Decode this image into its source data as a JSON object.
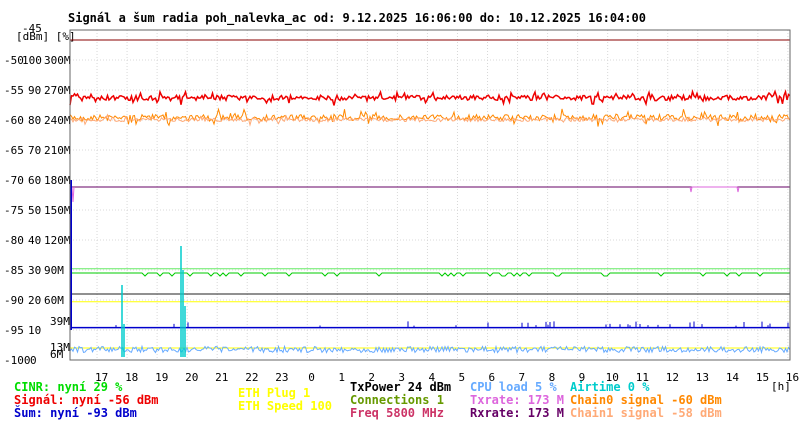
{
  "chart_data": {
    "type": "line",
    "title": "Signál a šum radia poh_nalevka_ac od: 9.12.2025 16:06:00 do: 10.12.2025 16:04:00",
    "y_axis_units": "[dBm] [%]",
    "x_axis_unit": "[h]",
    "ylim_dbm": [
      -100,
      -45
    ],
    "ylim_percent": [
      0,
      100
    ],
    "ylim_rate_mbps": [
      0,
      300
    ],
    "y_ticks_dbm": [
      "-45",
      "-50",
      "-55",
      "-60",
      "-65",
      "-70",
      "-75",
      "-80",
      "-85",
      "-90",
      "-95",
      "-100"
    ],
    "y_ticks_percent": [
      "100",
      "90",
      "80",
      "70",
      "60",
      "50",
      "40",
      "30",
      "20",
      "10",
      "0"
    ],
    "y_ticks_rate": [
      "300M",
      "270M",
      "240M",
      "210M",
      "180M",
      "150M",
      "120M",
      "90M",
      "60M"
    ],
    "x_ticks": [
      "17",
      "18",
      "19",
      "20",
      "21",
      "22",
      "23",
      "0",
      "1",
      "2",
      "3",
      "4",
      "5",
      "6",
      "7",
      "8",
      "9",
      "10",
      "11",
      "12",
      "13",
      "14",
      "15",
      "16"
    ],
    "extra_labels": [
      {
        "text": "39M",
        "color": "#dd66dd",
        "value_mbps": 39
      },
      {
        "text": "13M",
        "color": "#dd66dd",
        "value_mbps": 13
      },
      {
        "text": "6M",
        "color": "#dd66dd",
        "value_mbps": 6
      }
    ],
    "grid": true,
    "series": [
      {
        "name": "Signál",
        "unit": "dBm",
        "color": "#ee0000",
        "current": -56,
        "typical_range": [
          -57.5,
          -55.5
        ]
      },
      {
        "name": "Chain0 signal",
        "unit": "dBm",
        "color": "#ff8800",
        "current": -60,
        "typical_range": [
          -61,
          -58
        ]
      },
      {
        "name": "Šum",
        "unit": "dBm",
        "color": "#0000cc",
        "current": -93,
        "baseline": -94.5
      },
      {
        "name": "CINR",
        "unit": "%",
        "color": "#00cc00",
        "current": 29,
        "baseline": 29
      },
      {
        "name": "Airtime",
        "unit": "%",
        "color": "#00cccc",
        "current": 0
      },
      {
        "name": "CPU load",
        "unit": "%",
        "color": "#66aaff",
        "current": 5,
        "baseline": 3
      },
      {
        "name": "Connections",
        "unit": "",
        "color": "#669900",
        "current": 1
      },
      {
        "name": "ETH Speed",
        "unit": "Mbps",
        "color": "#ffff00",
        "current": 100
      },
      {
        "name": "Txrate",
        "unit": "Mbps",
        "color": "#dd66dd",
        "current": 173
      },
      {
        "name": "Rxrate",
        "unit": "Mbps",
        "color": "#660066",
        "current": 173
      }
    ]
  },
  "legend": {
    "col1": [
      {
        "text": "CINR: nyní 29 %",
        "color": "#00dd00"
      },
      {
        "text": "Signál: nyní -56 dBm",
        "color": "#ee0000"
      },
      {
        "text": "Šum: nyní -93 dBm",
        "color": "#0000cc"
      }
    ],
    "col2": [
      {
        "text": "ETH Plug 1",
        "color": "#ffff00"
      },
      {
        "text": "ETH Speed 100",
        "color": "#ffff00"
      }
    ],
    "col3": [
      {
        "text": "TxPower 24 dBm",
        "color": "#000000"
      },
      {
        "text": "Connections 1",
        "color": "#669900"
      },
      {
        "text": "Freq 5800 MHz",
        "color": "#cc3366"
      }
    ],
    "col4": [
      {
        "text": "CPU load 5 %",
        "color": "#66aaff"
      },
      {
        "text": "Txrate: 173 M",
        "color": "#dd66dd"
      },
      {
        "text": "Rxrate: 173 M",
        "color": "#660066"
      }
    ],
    "col5": [
      {
        "text": "Airtime 0 %",
        "color": "#00cccc"
      },
      {
        "text": "Chain0 signal -60 dBm",
        "color": "#ff8800"
      },
      {
        "text": "Chain1 signal -58 dBm",
        "color": "#ffaa77"
      }
    ]
  }
}
